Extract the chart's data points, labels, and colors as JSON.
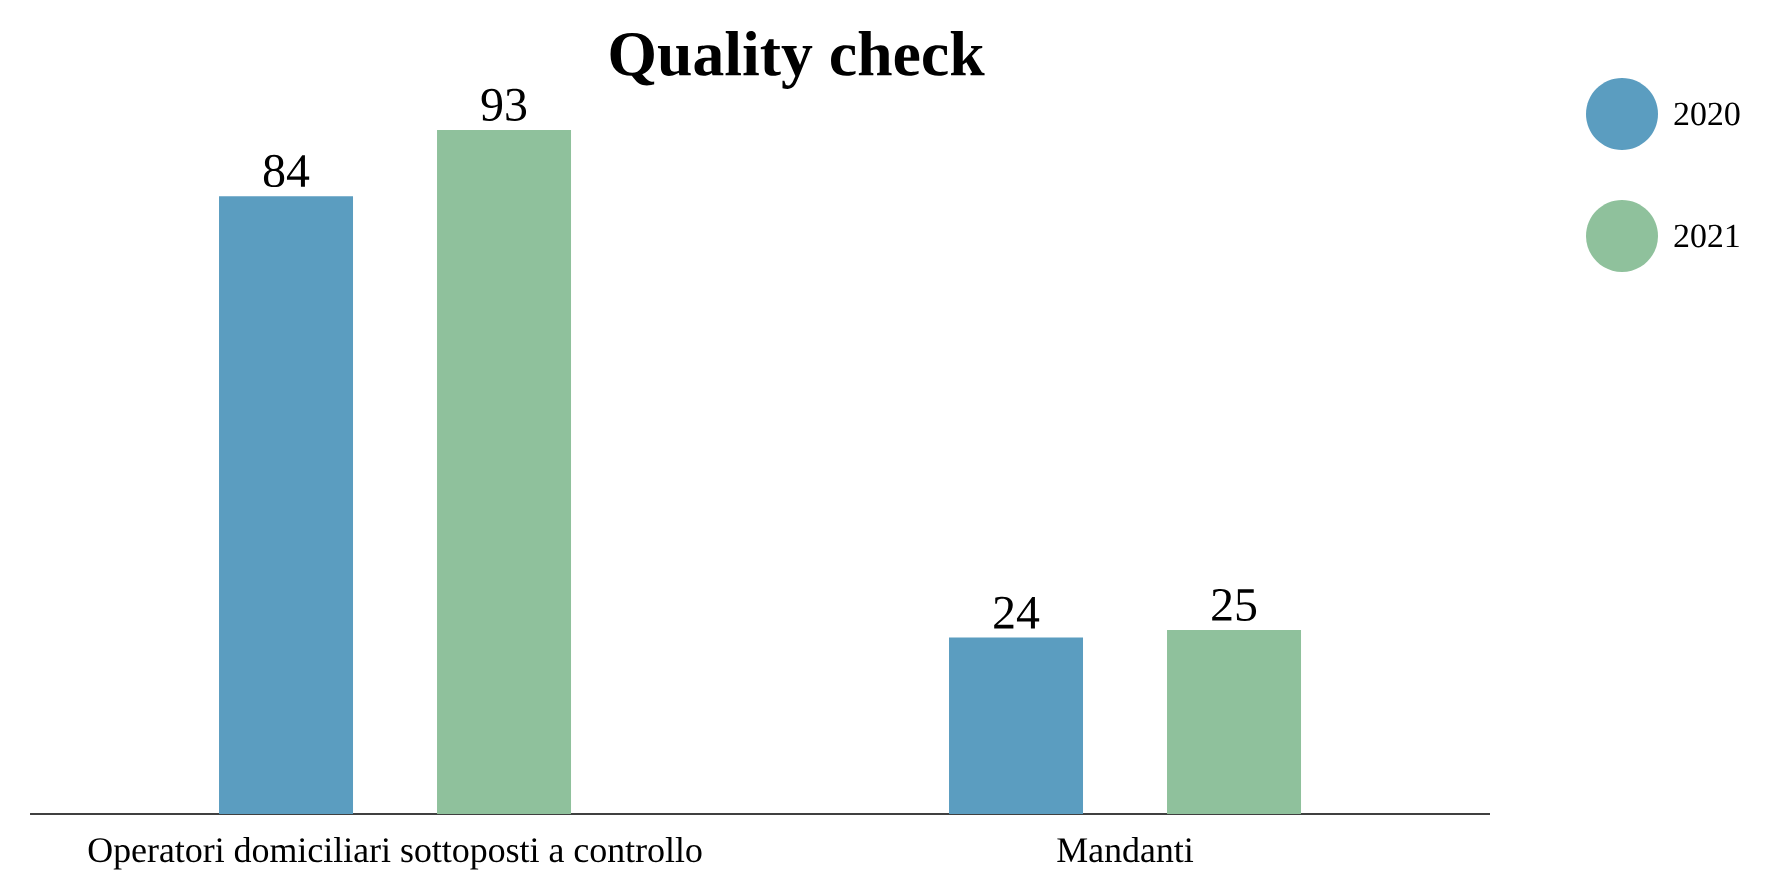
{
  "chart_data": {
    "type": "bar",
    "title": "Quality check",
    "categories": [
      "Operatori domiciliari sottoposti a controllo",
      "Mandanti"
    ],
    "series": [
      {
        "name": "2020",
        "color": "#5b9dc0",
        "values": [
          84,
          24
        ]
      },
      {
        "name": "2021",
        "color": "#8fc19c",
        "values": [
          93,
          25
        ]
      }
    ],
    "data_labels": true,
    "legend": "top right"
  }
}
